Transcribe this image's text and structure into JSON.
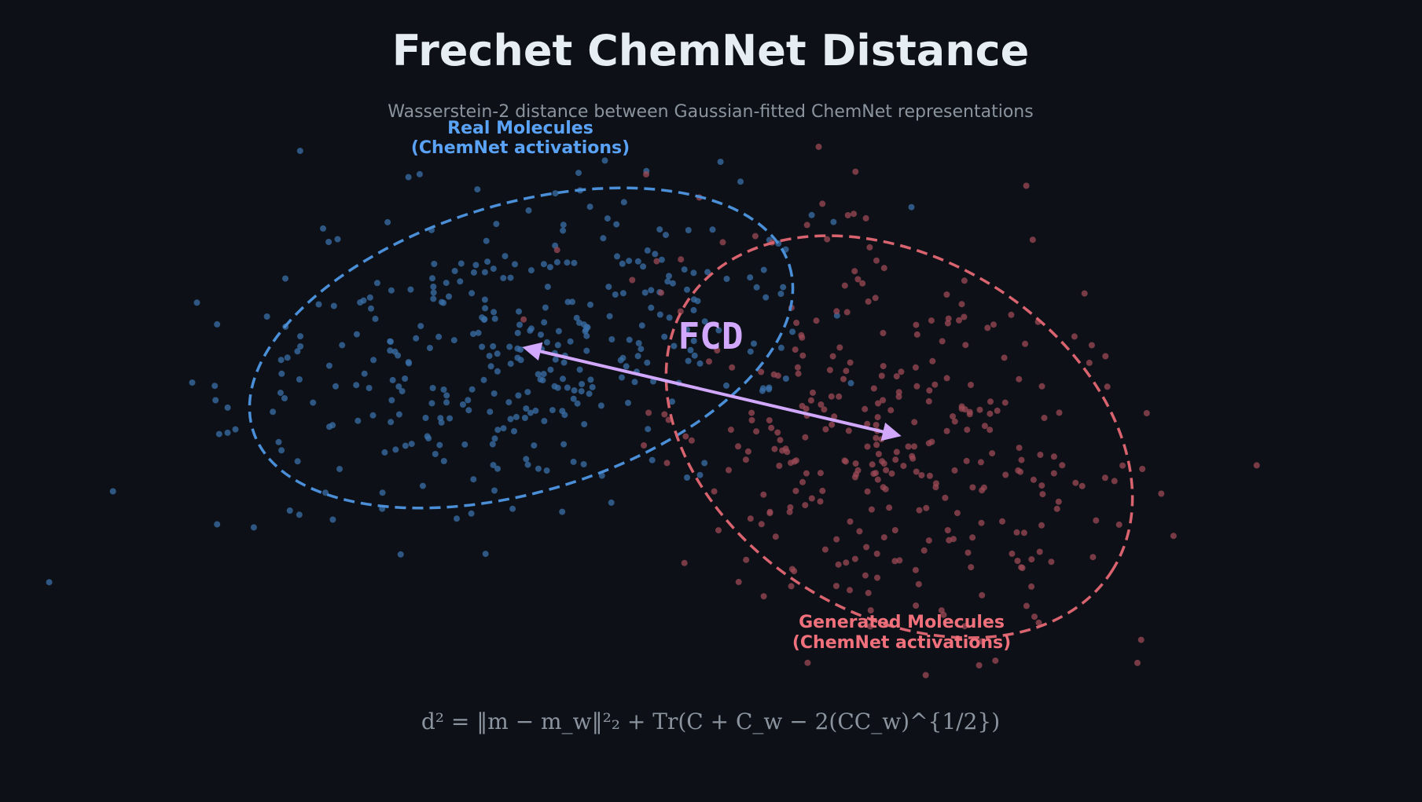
{
  "title": "Frechet ChemNet Distance",
  "subtitle": "Wasserstein-2 distance between Gaussian-fitted ChemNet representations",
  "real": {
    "label_line1": "Real Molecules",
    "label_line2": "(ChemNet activations)",
    "color": "#4a8fd8",
    "label_color": "#5aa2f5",
    "point_color": "#3a6fa8"
  },
  "generated": {
    "label_line1": "Generated Molecules",
    "label_line2": "(ChemNet activations)",
    "color": "#d9636e",
    "label_color": "#f0707c",
    "point_color": "#9c4a55"
  },
  "distance": {
    "label": "FCD",
    "color": "#d2a8ff"
  },
  "formula": "d² = ‖m − m_w‖²₂ + Tr(C + C_w − 2(CC_w)^{1/2})",
  "colors": {
    "background": "#0d1117",
    "title": "#e6edf3",
    "subtitle": "#8b949e",
    "formula": "#8b949e"
  }
}
